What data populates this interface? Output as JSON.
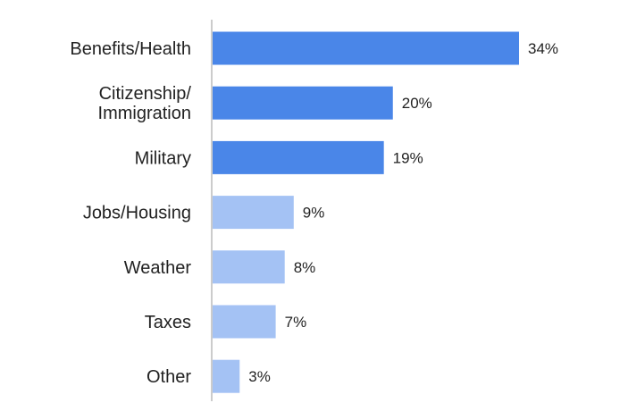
{
  "chart_data": {
    "type": "bar",
    "orientation": "horizontal",
    "categories": [
      "Benefits/Health",
      "Citizenship/\nImmigration",
      "Military",
      "Jobs/Housing",
      "Weather",
      "Taxes",
      "Other"
    ],
    "values": [
      34,
      20,
      19,
      9,
      8,
      7,
      3
    ],
    "value_labels": [
      "34%",
      "20%",
      "19%",
      "9%",
      "8%",
      "7%",
      "3%"
    ],
    "unit": "%",
    "title": "",
    "xlabel": "",
    "ylabel": "",
    "xlim": [
      0,
      36
    ],
    "grid": false,
    "legend": "none",
    "highlighted_count": 3,
    "colors": {
      "highlight": "#4a86e8",
      "muted": "#a4c2f4",
      "axis": "#9a9a9a",
      "text": "#222222"
    }
  }
}
